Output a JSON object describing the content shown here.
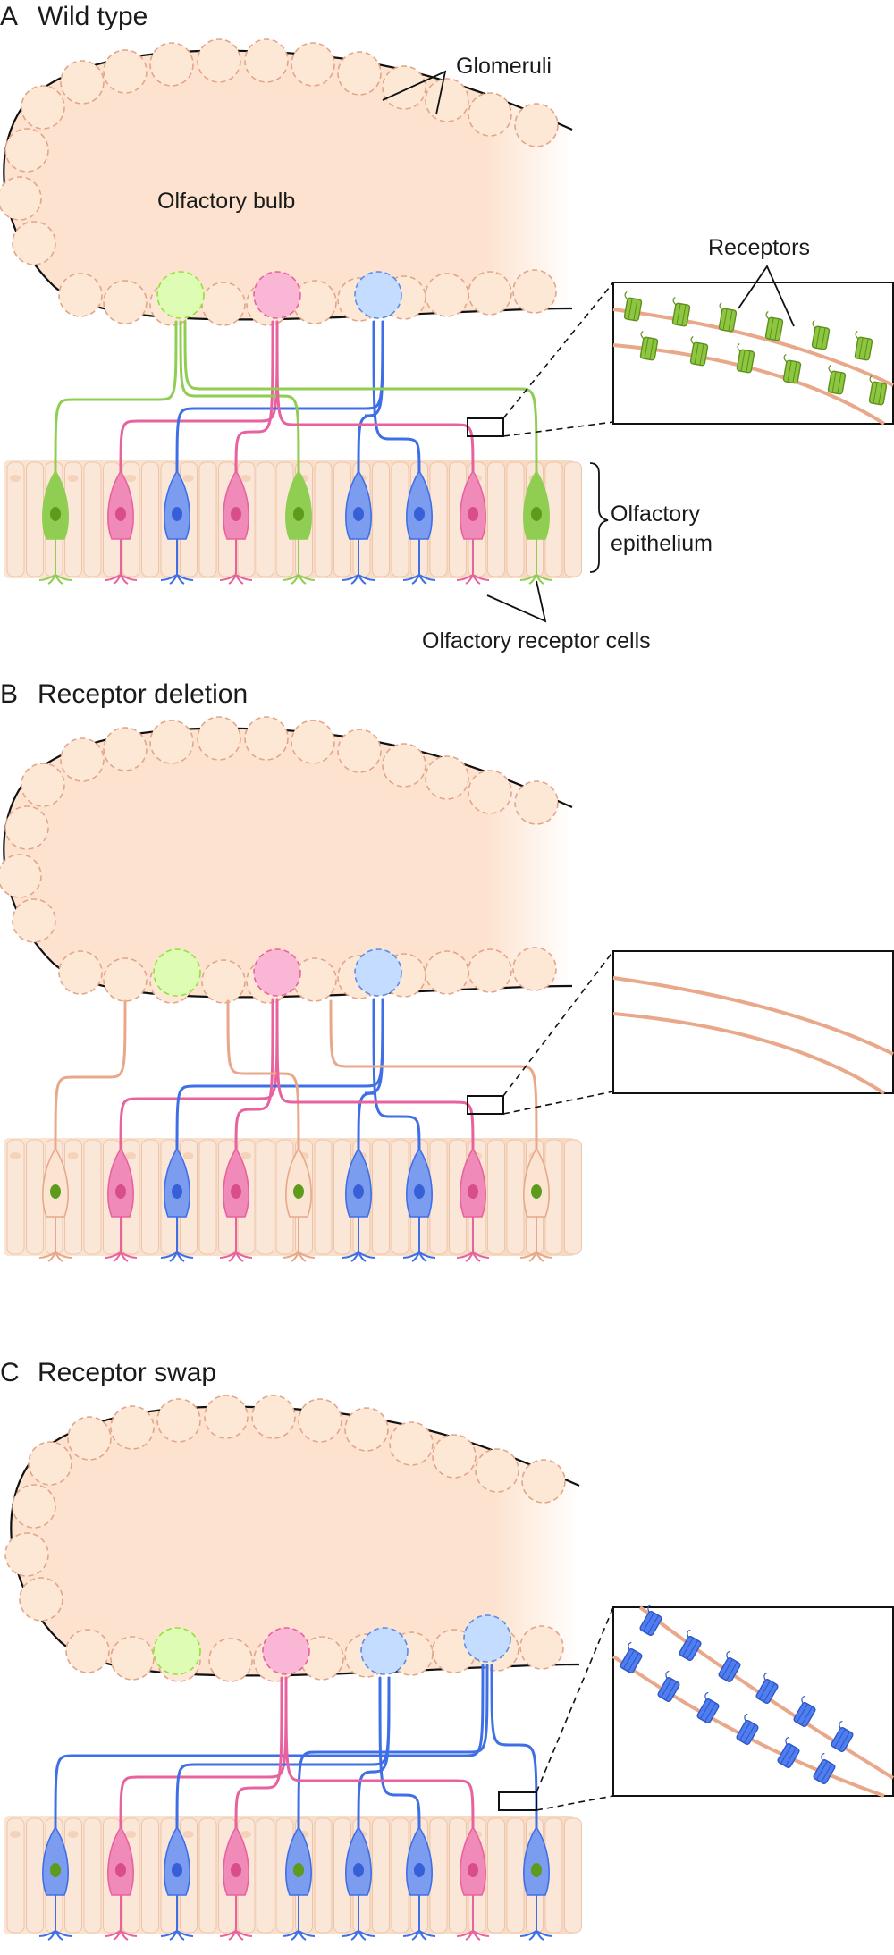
{
  "panels": [
    {
      "letter": "A",
      "title": "Wild type"
    },
    {
      "letter": "B",
      "title": "Receptor deletion"
    },
    {
      "letter": "C",
      "title": "Receptor swap"
    }
  ],
  "labels": {
    "glomeruli": "Glomeruli",
    "olfactory_bulb": "Olfactory bulb",
    "receptors": "Receptors",
    "olfactory_epithelium_line1": "Olfactory",
    "olfactory_epithelium_line2": "epithelium",
    "olfactory_receptor_cells": "Olfactory receptor cells"
  },
  "colors": {
    "green": "#8fe23a",
    "green_cell": "#8fce52",
    "green_nucleus": "#5e9a1c",
    "pink": "#e8629e",
    "pink_cell": "#f08ab9",
    "pink_nucleus": "#d84d8a",
    "blue": "#3f6fe6",
    "blue_cell": "#7c9cf0",
    "blue_nucleus": "#3760d8",
    "tan_axon": "#e8a889",
    "bulb_fill": "#fde3cf",
    "epithelium_fill": "#fbe4d1",
    "glom_outline": "#e3a589"
  },
  "cell_types": {
    "A": [
      "green",
      "pink",
      "blue",
      "pink",
      "green",
      "blue",
      "blue",
      "pink",
      "green"
    ],
    "B": [
      "deleted",
      "pink",
      "blue",
      "pink",
      "deleted",
      "blue",
      "blue",
      "pink",
      "deleted"
    ],
    "C": [
      "swapped",
      "pink",
      "blue",
      "pink",
      "swapped",
      "blue",
      "blue",
      "pink",
      "swapped"
    ]
  }
}
